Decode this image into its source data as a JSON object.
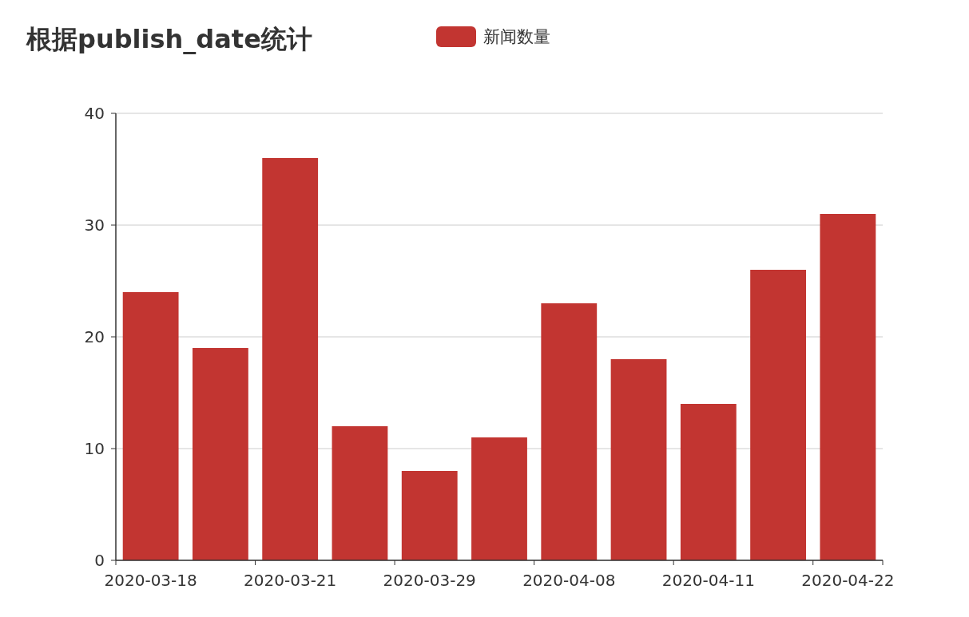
{
  "chart_data": {
    "type": "bar",
    "title": "根据publish_date统计",
    "categories": [
      "2020-03-18",
      null,
      "2020-03-21",
      null,
      "2020-03-29",
      null,
      "2020-04-08",
      null,
      "2020-04-11",
      null,
      "2020-04-22"
    ],
    "series": [
      {
        "name": "新闻数量",
        "color": "#c23531",
        "values": [
          24,
          19,
          36,
          12,
          8,
          11,
          23,
          18,
          14,
          26,
          31
        ]
      }
    ],
    "ylim": [
      0,
      40
    ],
    "yticks": [
      0,
      10,
      20,
      30,
      40
    ],
    "grid": "y",
    "legend": "top"
  }
}
